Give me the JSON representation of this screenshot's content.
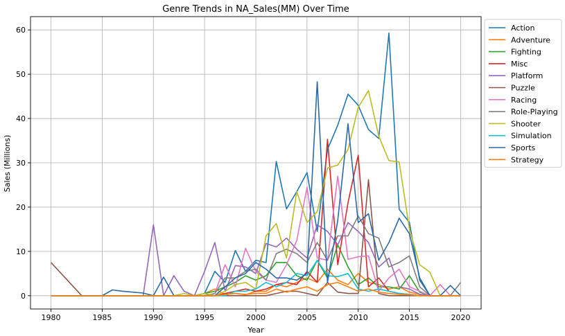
{
  "chart_data": {
    "type": "line",
    "title": "Genre Trends in NA_Sales(MM) Over Time",
    "xlabel": "Year",
    "ylabel": "Sales (Millions)",
    "xlim": [
      1978,
      2022
    ],
    "ylim": [
      -3,
      63
    ],
    "xticks": [
      1980,
      1985,
      1990,
      1995,
      2000,
      2005,
      2010,
      2015,
      2020
    ],
    "yticks": [
      0,
      10,
      20,
      30,
      40,
      50,
      60
    ],
    "grid": true,
    "legend_position": "outside right",
    "x": [
      1980,
      1981,
      1982,
      1983,
      1984,
      1985,
      1986,
      1987,
      1988,
      1989,
      1990,
      1991,
      1992,
      1993,
      1994,
      1995,
      1996,
      1997,
      1998,
      1999,
      2000,
      2001,
      2002,
      2003,
      2004,
      2005,
      2006,
      2007,
      2008,
      2009,
      2010,
      2011,
      2012,
      2013,
      2014,
      2015,
      2016,
      2017,
      2018,
      2019,
      2020
    ],
    "series": [
      {
        "name": "Action",
        "color": "#1f77b4",
        "values": [
          0,
          0,
          0,
          0,
          0,
          0,
          0,
          0,
          0,
          0,
          0,
          0,
          0,
          0,
          0,
          0.5,
          5.5,
          3,
          10.2,
          5.5,
          8,
          7.5,
          30.3,
          19.6,
          23.5,
          27.8,
          14.5,
          33,
          38.5,
          45.5,
          43,
          37.5,
          35.5,
          59.3,
          19.5,
          16.5,
          3.5,
          0,
          0,
          0,
          0
        ]
      },
      {
        "name": "Adventure",
        "color": "#ff7f0e",
        "values": [
          0,
          0,
          0,
          0,
          0,
          0,
          0,
          0,
          0,
          0,
          0,
          0,
          0,
          0,
          0,
          0.5,
          1.5,
          0.3,
          0.5,
          0.2,
          1,
          1,
          2.5,
          2,
          3,
          4,
          3,
          6,
          3.5,
          2.5,
          5,
          3,
          2.5,
          1.5,
          2,
          0.8,
          0.3,
          0,
          0,
          0,
          0
        ]
      },
      {
        "name": "Fighting",
        "color": "#2ca02c",
        "values": [
          0,
          0,
          0,
          0,
          0,
          0,
          0,
          0,
          0,
          0,
          0,
          0,
          0,
          0,
          0,
          0.5,
          1,
          2,
          3,
          4.5,
          3.5,
          4.5,
          7.5,
          7.5,
          4.5,
          3.5,
          8,
          4,
          11.5,
          6.5,
          2.5,
          4,
          2,
          2,
          1.5,
          4.5,
          0.8,
          0,
          0,
          0,
          0
        ]
      },
      {
        "name": "Misc",
        "color": "#d62728",
        "values": [
          0,
          0,
          0,
          0,
          0,
          0,
          0,
          0,
          0,
          0,
          0,
          0,
          0,
          0,
          0,
          0,
          0,
          0.5,
          1,
          1.5,
          1,
          1.5,
          2.5,
          3,
          2.5,
          5.5,
          3,
          35.3,
          7,
          21,
          31.7,
          2,
          4,
          1,
          0.5,
          0.3,
          0,
          0,
          0,
          0,
          0
        ]
      },
      {
        "name": "Platform",
        "color": "#9467bd",
        "values": [
          0,
          0,
          0,
          0,
          0,
          0,
          0,
          0,
          0,
          0,
          16,
          0,
          4.5,
          1,
          0,
          5.5,
          12,
          1,
          6.8,
          6.5,
          5,
          11.8,
          11,
          13,
          10.5,
          8.5,
          16,
          14.5,
          11.5,
          16.5,
          14.5,
          12,
          6.5,
          8.5,
          2,
          1.5,
          0.3,
          0,
          0,
          0,
          0
        ]
      },
      {
        "name": "Puzzle",
        "color": "#8c564b",
        "values": [
          7.5,
          5,
          2.5,
          0,
          0,
          0,
          0,
          0,
          0,
          0,
          0,
          0,
          0,
          0,
          0,
          0,
          0,
          0,
          0,
          0,
          0,
          0,
          0.5,
          1,
          1,
          0.5,
          0,
          3,
          0.8,
          0.5,
          0.5,
          26.2,
          0.5,
          0,
          0,
          0,
          0,
          0,
          0,
          0,
          0
        ]
      },
      {
        "name": "Racing",
        "color": "#e377c2",
        "values": [
          0,
          0,
          0,
          0,
          0,
          0,
          0,
          0,
          0,
          0,
          0,
          0,
          0,
          0,
          0,
          0,
          0.5,
          7,
          2,
          10.7,
          5.5,
          3.5,
          3,
          7,
          12.5,
          24.5,
          8.5,
          8,
          27,
          8.2,
          8.8,
          9,
          1,
          4,
          6,
          2,
          1,
          0,
          2.5,
          0,
          0
        ]
      },
      {
        "name": "Role-Playing",
        "color": "#7f7f7f",
        "values": [
          0,
          0,
          0,
          0,
          0,
          0,
          0,
          0,
          0,
          0,
          0,
          0,
          0,
          0,
          0,
          0,
          0.5,
          4,
          4,
          5.5,
          6,
          3.5,
          9.5,
          10.5,
          9.5,
          7.5,
          12,
          8,
          13.5,
          13.5,
          18,
          14,
          13,
          6.5,
          7.5,
          9,
          2,
          0,
          0,
          0,
          3
        ]
      },
      {
        "name": "Shooter",
        "color": "#bcbd22",
        "values": [
          0,
          0,
          0,
          0,
          0,
          0,
          0,
          0,
          0,
          0,
          0,
          0,
          0,
          0.5,
          0,
          0.5,
          0,
          1,
          2.5,
          3,
          1.5,
          13.5,
          16.3,
          8.5,
          23.5,
          16.5,
          19,
          28.8,
          29.5,
          33,
          42.5,
          46.3,
          36,
          30.5,
          30.2,
          15,
          7,
          5.3,
          0,
          0,
          0
        ]
      },
      {
        "name": "Simulation",
        "color": "#17becf",
        "values": [
          0,
          0,
          0,
          0,
          0,
          0,
          0,
          0,
          0,
          0,
          0,
          0,
          0,
          0,
          0,
          0,
          0,
          0,
          1,
          1,
          1.5,
          3,
          2,
          3,
          5,
          4.5,
          8,
          4.5,
          4.3,
          5,
          1.5,
          1,
          1.5,
          1,
          0.5,
          0.3,
          0,
          0,
          0,
          0,
          0
        ]
      },
      {
        "name": "Sports",
        "color": "#2b69a6",
        "values": [
          0,
          0,
          0,
          0,
          0,
          0,
          1.3,
          1,
          0.8,
          0.6,
          0,
          4.2,
          0,
          0,
          0,
          0,
          0,
          2,
          4,
          5,
          7.5,
          6,
          4,
          4,
          3.5,
          5,
          48.3,
          3,
          17,
          38.8,
          16.5,
          18.5,
          8,
          12,
          17.5,
          14,
          4,
          0,
          0,
          2.3,
          0
        ]
      },
      {
        "name": "Strategy",
        "color": "#ff7f0e",
        "values": [
          0,
          0,
          0,
          0,
          0,
          0,
          0,
          0,
          0,
          0,
          0,
          0,
          0,
          0,
          0,
          0,
          0,
          0.3,
          0.5,
          0.3,
          0.5,
          0.5,
          1.5,
          0.8,
          1.5,
          2,
          1,
          2.5,
          3,
          2,
          1,
          1.5,
          0.8,
          0.5,
          0.3,
          0.2,
          0,
          0,
          0,
          0,
          0
        ]
      }
    ]
  }
}
